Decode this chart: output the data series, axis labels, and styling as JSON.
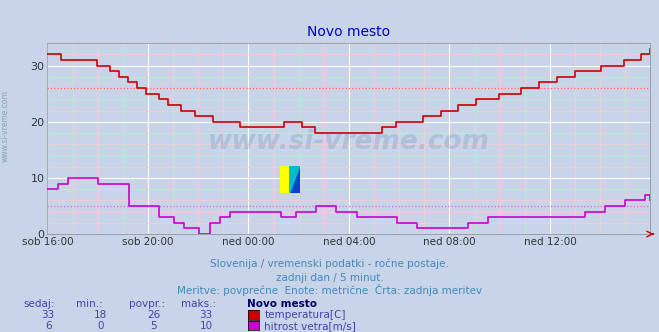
{
  "title": "Novo mesto",
  "title_color": "#0000cc",
  "bg_color": "#c8d4e8",
  "plot_bg_color": "#c8d4e8",
  "grid_major_color": "#ffffff",
  "grid_minor_color": "#ffcccc",
  "x_labels": [
    "sob 16:00",
    "sob 20:00",
    "ned 00:00",
    "ned 04:00",
    "ned 08:00",
    "ned 12:00"
  ],
  "x_ticks_pos": [
    0,
    48,
    96,
    144,
    192,
    240
  ],
  "x_max": 288,
  "y_ticks": [
    0,
    10,
    20,
    30
  ],
  "y_max": 34,
  "temp_color": "#cc0000",
  "wind_color": "#cc00cc",
  "temp_avg_line": 26,
  "wind_avg_line": 5,
  "temp_dashed_color": "#ff6666",
  "wind_dashed_color": "#dd66dd",
  "subtitle1": "Slovenija / vremenski podatki - ročne postaje.",
  "subtitle2": "zadnji dan / 5 minut.",
  "subtitle3": "Meritve: povprečne  Enote: metrične  Črta: zadnja meritev",
  "subtitle_color": "#4488bb",
  "watermark": "www.si-vreme.com",
  "legend_title": "Novo mesto",
  "legend_title_color": "#000066",
  "legend_color": "#4444aa",
  "label_sedaj": "sedaj:",
  "label_min": "min.:",
  "label_povpr": "povpr.:",
  "label_maks": "maks.:",
  "temp_sedaj": 33,
  "temp_min": 18,
  "temp_povpr": 26,
  "temp_maks": 33,
  "wind_sedaj": 6,
  "wind_min": 0,
  "wind_povpr": 5,
  "wind_maks": 10,
  "temp_label": "temperatura[C]",
  "wind_label": "hitrost vetra[m/s]",
  "temp_data": [
    32,
    32,
    32,
    31,
    31,
    31,
    31,
    31,
    31,
    31,
    31,
    30,
    30,
    30,
    29,
    29,
    28,
    28,
    27,
    27,
    26,
    26,
    25,
    25,
    25,
    24,
    24,
    23,
    23,
    23,
    22,
    22,
    22,
    21,
    21,
    21,
    21,
    20,
    20,
    20,
    20,
    20,
    20,
    19,
    19,
    19,
    19,
    19,
    19,
    19,
    19,
    19,
    19,
    20,
    20,
    20,
    20,
    19,
    19,
    19,
    18,
    18,
    18,
    18,
    18,
    18,
    18,
    18,
    18,
    18,
    18,
    18,
    18,
    18,
    18,
    19,
    19,
    19,
    20,
    20,
    20,
    20,
    20,
    20,
    21,
    21,
    21,
    21,
    22,
    22,
    22,
    22,
    23,
    23,
    23,
    23,
    24,
    24,
    24,
    24,
    24,
    25,
    25,
    25,
    25,
    25,
    26,
    26,
    26,
    26,
    27,
    27,
    27,
    27,
    28,
    28,
    28,
    28,
    29,
    29,
    29,
    29,
    29,
    29,
    30,
    30,
    30,
    30,
    30,
    31,
    31,
    31,
    31,
    32,
    32,
    33
  ],
  "wind_data": [
    8,
    8,
    9,
    9,
    10,
    10,
    10,
    10,
    10,
    10,
    9,
    9,
    9,
    9,
    9,
    9,
    5,
    5,
    5,
    5,
    5,
    5,
    3,
    3,
    3,
    2,
    2,
    1,
    1,
    1,
    0,
    0,
    2,
    2,
    3,
    3,
    4,
    4,
    4,
    4,
    4,
    4,
    4,
    4,
    4,
    4,
    3,
    3,
    3,
    4,
    4,
    4,
    4,
    5,
    5,
    5,
    5,
    4,
    4,
    4,
    4,
    3,
    3,
    3,
    3,
    3,
    3,
    3,
    3,
    2,
    2,
    2,
    2,
    1,
    1,
    1,
    1,
    1,
    1,
    1,
    1,
    1,
    1,
    2,
    2,
    2,
    2,
    3,
    3,
    3,
    3,
    3,
    3,
    3,
    3,
    3,
    3,
    3,
    3,
    3,
    3,
    3,
    3,
    3,
    3,
    3,
    4,
    4,
    4,
    4,
    5,
    5,
    5,
    5,
    6,
    6,
    6,
    6,
    7,
    6
  ],
  "figsize": [
    6.59,
    3.32
  ],
  "dpi": 100
}
